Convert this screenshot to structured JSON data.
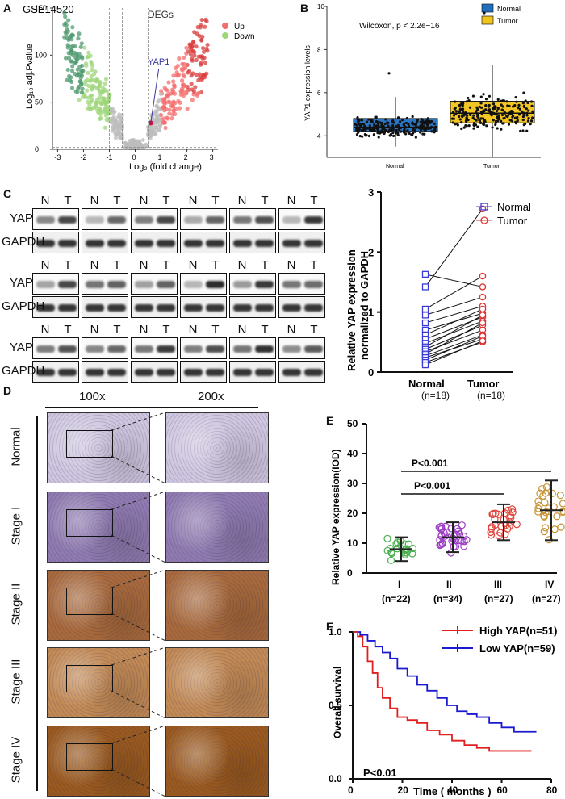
{
  "panels": {
    "A": {
      "label": "A",
      "title": "GSE14520",
      "xlabel": "Log₂ (fold change)",
      "ylabel": "Log₁₀ adj.Pvalue",
      "legend_title": "DEGs",
      "legend_up": "Up",
      "legend_down": "Down",
      "gene_label": "YAP1",
      "colors": {
        "up": "#f46d6d",
        "down": "#9ed67a",
        "down_dark": "#4f9a6f",
        "up_dark": "#d93b3b",
        "ns": "#bdbdbd"
      },
      "chart_data": {
        "type": "scatter",
        "title": "GSE14520",
        "xlim": [
          -3.2,
          3.2
        ],
        "ylim": [
          0,
          150
        ],
        "xticks": [
          -3,
          -2,
          -1,
          0,
          1,
          2,
          3
        ],
        "yticks": [
          0,
          50,
          100,
          150
        ],
        "thresholds_x": [
          -1,
          -0.5,
          0.5,
          1
        ],
        "threshold_y": 2,
        "highlight": {
          "name": "YAP1",
          "x": 0.6,
          "y": 28
        }
      }
    },
    "B": {
      "label": "B",
      "ylabel": "YAP1 expression levels",
      "stat": "Wilcoxon, p < 2.2e−16",
      "legend_normal": "Normal",
      "legend_tumor": "Tumor",
      "xticks": [
        "Normal",
        "Tumor"
      ],
      "colors": {
        "normal": "#1f6fbf",
        "tumor": "#f2c318"
      },
      "chart_data": {
        "type": "box",
        "categories": [
          "Normal",
          "Tumor"
        ],
        "ylim": [
          3,
          10
        ],
        "yticks": [
          4,
          6,
          8,
          10
        ],
        "boxes": [
          {
            "name": "Normal",
            "min": 3.5,
            "q1": 4.2,
            "median": 4.4,
            "q3": 4.8,
            "max": 5.8,
            "outlier": 6.9
          },
          {
            "name": "Tumor",
            "min": 3.0,
            "q1": 4.6,
            "median": 5.05,
            "q3": 5.6,
            "max": 7.3,
            "outlier": 9.7
          }
        ]
      }
    },
    "C": {
      "label": "C",
      "pair_labels": [
        "N",
        "T"
      ],
      "rows": [
        "YAP",
        "GAPDH",
        "YAP",
        "GAPDH",
        "YAP",
        "GAPDH"
      ],
      "chart": {
        "ylabel_line1": "Relative YAP expression",
        "ylabel_line2": "normalized to GAPDH",
        "legend_normal": "Normal",
        "legend_tumor": "Tumor",
        "xlabels": [
          "Normal",
          "Tumor"
        ],
        "ns": [
          "(n=18)",
          "(n=18)"
        ],
        "colors": {
          "normal": "#3a3ad6",
          "tumor": "#e03030"
        },
        "chart_data": {
          "type": "paired",
          "ylim": [
            0,
            3
          ],
          "yticks": [
            0,
            1,
            2,
            3
          ],
          "pairs": [
            [
              1.63,
              1.42
            ],
            [
              1.42,
              2.72
            ],
            [
              1.05,
              1.6
            ],
            [
              0.95,
              1.25
            ],
            [
              0.82,
              1.1
            ],
            [
              0.7,
              0.98
            ],
            [
              0.62,
              1.05
            ],
            [
              0.55,
              0.92
            ],
            [
              0.48,
              0.85
            ],
            [
              0.42,
              0.95
            ],
            [
              0.38,
              0.78
            ],
            [
              0.34,
              0.7
            ],
            [
              0.3,
              0.82
            ],
            [
              0.27,
              0.62
            ],
            [
              0.24,
              0.55
            ],
            [
              0.2,
              0.6
            ],
            [
              0.16,
              0.5
            ],
            [
              0.12,
              0.52
            ]
          ]
        }
      }
    },
    "D": {
      "label": "D",
      "col_100": "100x",
      "col_200": "200x",
      "stages": [
        "Normal",
        "Stage I",
        "Stage II",
        "Stage III",
        "Stage IV"
      ],
      "tissue_colors": [
        "#cfc7e0",
        "#8f7bb0",
        "#a86a3c",
        "#c28a55",
        "#9a5a1f"
      ]
    },
    "E": {
      "label": "E",
      "ylabel": "Relative YAP expression(IOD)",
      "sig1": "P<0.001",
      "sig2": "P<0.001",
      "groups": [
        "I",
        "II",
        "III",
        "IV"
      ],
      "ns": [
        "(n=22)",
        "(n=34)",
        "(n=27)",
        "(n=27)"
      ],
      "colors": [
        "#4caf50",
        "#9c3fc4",
        "#e0453a",
        "#c79335"
      ],
      "chart_data": {
        "type": "scatter_dot",
        "ylim": [
          0,
          50
        ],
        "yticks": [
          0,
          10,
          20,
          30,
          40,
          50
        ],
        "means": [
          8,
          12,
          17,
          21
        ],
        "sd": [
          4,
          5,
          6,
          10
        ]
      }
    },
    "F": {
      "label": "F",
      "ylabel": "Overall survival",
      "xlabel": "Time ( months )",
      "pval": "P<0.01",
      "legend_high": "High YAP(n=51)",
      "legend_low": "Low YAP(n=59)",
      "colors": {
        "high": "#e02020",
        "low": "#1a1ad0"
      },
      "chart_data": {
        "type": "km",
        "xlim": [
          0,
          80
        ],
        "ylim": [
          0,
          1
        ],
        "xticks": [
          0,
          20,
          40,
          60,
          80
        ],
        "yticks": [
          0.0,
          0.5,
          1.0
        ],
        "high": [
          [
            0,
            1
          ],
          [
            2,
            0.97
          ],
          [
            4,
            0.9
          ],
          [
            6,
            0.8
          ],
          [
            8,
            0.72
          ],
          [
            10,
            0.62
          ],
          [
            12,
            0.55
          ],
          [
            15,
            0.48
          ],
          [
            18,
            0.42
          ],
          [
            22,
            0.4
          ],
          [
            26,
            0.38
          ],
          [
            30,
            0.33
          ],
          [
            35,
            0.3
          ],
          [
            40,
            0.26
          ],
          [
            45,
            0.23
          ],
          [
            50,
            0.21
          ],
          [
            55,
            0.19
          ],
          [
            72,
            0.19
          ]
        ],
        "low": [
          [
            0,
            1
          ],
          [
            3,
            0.98
          ],
          [
            6,
            0.94
          ],
          [
            9,
            0.9
          ],
          [
            12,
            0.86
          ],
          [
            15,
            0.82
          ],
          [
            18,
            0.75
          ],
          [
            22,
            0.7
          ],
          [
            26,
            0.64
          ],
          [
            30,
            0.6
          ],
          [
            34,
            0.55
          ],
          [
            38,
            0.5
          ],
          [
            42,
            0.46
          ],
          [
            46,
            0.44
          ],
          [
            50,
            0.42
          ],
          [
            55,
            0.38
          ],
          [
            60,
            0.35
          ],
          [
            65,
            0.32
          ],
          [
            74,
            0.32
          ]
        ]
      }
    }
  }
}
